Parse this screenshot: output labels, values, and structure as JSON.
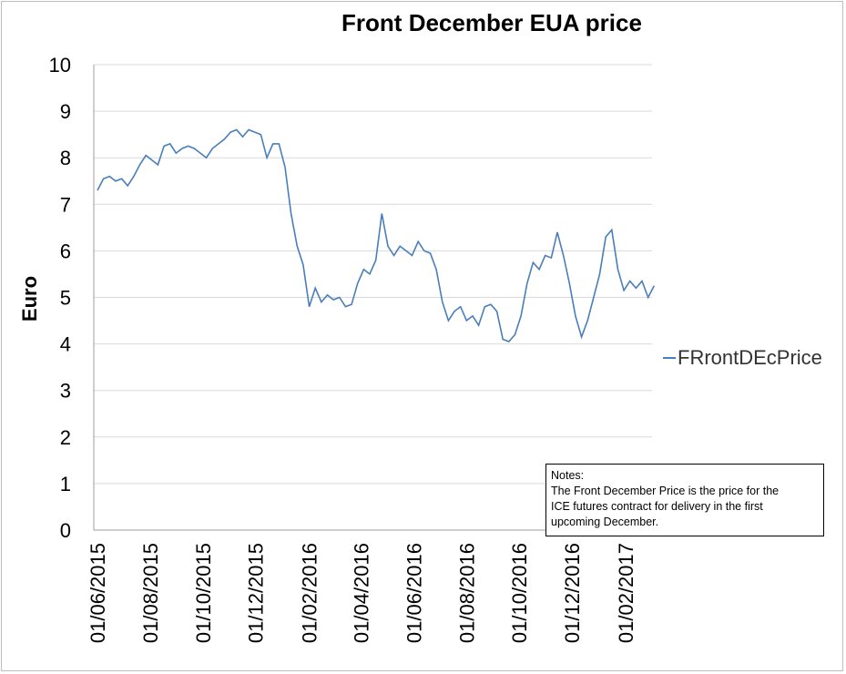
{
  "chart_data": {
    "type": "line",
    "title": "Front December EUA price",
    "ylabel": "Euro",
    "xlabel": "",
    "ylim": [
      0,
      10
    ],
    "yticks": [
      "0",
      "1",
      "2",
      "3",
      "4",
      "5",
      "6",
      "7",
      "8",
      "9",
      "10"
    ],
    "xticks": [
      "01/06/2015",
      "01/08/2015",
      "01/10/2015",
      "01/12/2015",
      "01/02/2016",
      "01/04/2016",
      "01/06/2016",
      "01/08/2016",
      "01/10/2016",
      "01/12/2016",
      "01/02/2017"
    ],
    "grid": true,
    "legend_position": "right",
    "line_color": "#4a7ebb",
    "series": [
      {
        "name": "FRrontDEcPrice",
        "x": [
          "2015-06-01",
          "2015-06-08",
          "2015-06-15",
          "2015-06-22",
          "2015-06-29",
          "2015-07-06",
          "2015-07-13",
          "2015-07-20",
          "2015-07-27",
          "2015-08-03",
          "2015-08-10",
          "2015-08-17",
          "2015-08-24",
          "2015-08-31",
          "2015-09-07",
          "2015-09-14",
          "2015-09-21",
          "2015-09-28",
          "2015-10-05",
          "2015-10-12",
          "2015-10-19",
          "2015-10-26",
          "2015-11-02",
          "2015-11-09",
          "2015-11-16",
          "2015-11-23",
          "2015-11-30",
          "2015-12-07",
          "2015-12-14",
          "2015-12-21",
          "2015-12-28",
          "2016-01-04",
          "2016-01-11",
          "2016-01-18",
          "2016-01-25",
          "2016-02-01",
          "2016-02-08",
          "2016-02-15",
          "2016-02-22",
          "2016-02-29",
          "2016-03-07",
          "2016-03-14",
          "2016-03-21",
          "2016-03-28",
          "2016-04-04",
          "2016-04-11",
          "2016-04-18",
          "2016-04-25",
          "2016-05-02",
          "2016-05-09",
          "2016-05-16",
          "2016-05-23",
          "2016-05-30",
          "2016-06-06",
          "2016-06-13",
          "2016-06-20",
          "2016-06-27",
          "2016-07-04",
          "2016-07-11",
          "2016-07-18",
          "2016-07-25",
          "2016-08-01",
          "2016-08-08",
          "2016-08-15",
          "2016-08-22",
          "2016-08-29",
          "2016-09-05",
          "2016-09-12",
          "2016-09-19",
          "2016-09-26",
          "2016-10-03",
          "2016-10-10",
          "2016-10-17",
          "2016-10-24",
          "2016-10-31",
          "2016-11-07",
          "2016-11-14",
          "2016-11-21",
          "2016-11-28",
          "2016-12-05",
          "2016-12-12",
          "2016-12-19",
          "2016-12-26",
          "2017-01-02",
          "2017-01-09",
          "2017-01-16",
          "2017-01-23",
          "2017-01-30",
          "2017-02-06",
          "2017-02-13",
          "2017-02-20",
          "2017-02-27",
          "2017-03-06"
        ],
        "values": [
          7.3,
          7.55,
          7.6,
          7.5,
          7.55,
          7.4,
          7.6,
          7.85,
          8.05,
          7.95,
          7.85,
          8.25,
          8.3,
          8.1,
          8.2,
          8.25,
          8.2,
          8.1,
          8.0,
          8.2,
          8.3,
          8.4,
          8.55,
          8.6,
          8.45,
          8.6,
          8.55,
          8.5,
          8.0,
          8.3,
          8.3,
          7.8,
          6.8,
          6.1,
          5.7,
          4.8,
          5.2,
          4.9,
          5.05,
          4.95,
          5.0,
          4.8,
          4.85,
          5.3,
          5.6,
          5.5,
          5.8,
          6.8,
          6.1,
          5.9,
          6.1,
          6.0,
          5.9,
          6.2,
          6.0,
          5.95,
          5.6,
          4.9,
          4.5,
          4.7,
          4.8,
          4.5,
          4.6,
          4.4,
          4.8,
          4.85,
          4.7,
          4.1,
          4.05,
          4.2,
          4.6,
          5.3,
          5.75,
          5.6,
          5.9,
          5.85,
          6.4,
          5.9,
          5.3,
          4.6,
          4.15,
          4.5,
          5.0,
          5.5,
          6.3,
          6.45,
          5.6,
          5.15,
          5.35,
          5.2,
          5.35,
          5.0,
          5.25
        ]
      }
    ]
  },
  "notes": {
    "heading": "Notes:",
    "lines": [
      "The Front December Price is the price for the",
      "ICE futures contract for delivery in the first",
      "upcoming December."
    ]
  }
}
